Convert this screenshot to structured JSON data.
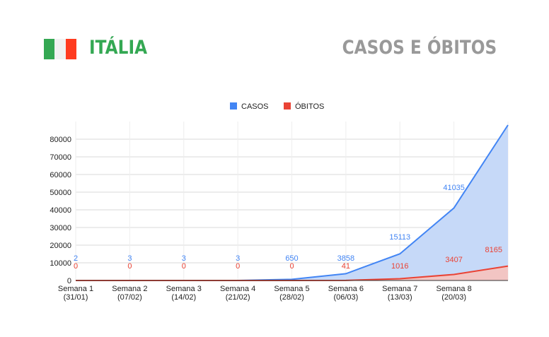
{
  "header": {
    "country": "ITÁLIA",
    "subtitle": "CASOS E ÓBITOS",
    "flag_colors": [
      "#34a853",
      "#f1f1f1",
      "#ff3b1f"
    ]
  },
  "chart_data": {
    "type": "area",
    "categories": [
      [
        "Semana 1",
        "(31/01)"
      ],
      [
        "Semana 2",
        "(07/02)"
      ],
      [
        "Semana 3",
        "(14/02)"
      ],
      [
        "Semana 4",
        "(21/02)"
      ],
      [
        "Semana 5",
        "(28/02)"
      ],
      [
        "Semana 6",
        "(06/03)"
      ],
      [
        "Semana 7",
        "(13/03)"
      ],
      [
        "Semana 8",
        "(20/03)"
      ],
      [
        "",
        ""
      ]
    ],
    "series": [
      {
        "name": "CASOS",
        "color": "#4285f4",
        "fill": "#c6d9f8",
        "values": [
          2,
          3,
          3,
          3,
          650,
          3858,
          15113,
          41035,
          88000
        ],
        "labels": [
          "2",
          "3",
          "3",
          "3",
          "650",
          "3858",
          "15113",
          "41035",
          ""
        ]
      },
      {
        "name": "ÓBITOS",
        "color": "#ea4335",
        "fill": "#f4c4c0",
        "values": [
          0,
          0,
          0,
          0,
          0,
          41,
          1016,
          3407,
          8165
        ],
        "labels": [
          "0",
          "0",
          "0",
          "0",
          "0",
          "41",
          "1016",
          "3407",
          "8165"
        ]
      }
    ],
    "ylim": [
      0,
      90000
    ],
    "yticks": [
      0,
      10000,
      20000,
      30000,
      40000,
      50000,
      60000,
      70000,
      80000
    ],
    "grid": true,
    "legend": "top-center"
  }
}
